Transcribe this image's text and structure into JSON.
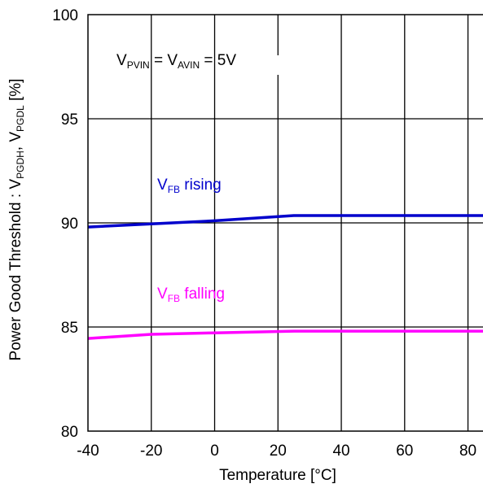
{
  "chart_data": {
    "type": "line",
    "xlabel": "Temperature [°C]",
    "ylabel": {
      "main": "Power Good Threshold : V",
      "sub1": "PGDH",
      "sep": ", V",
      "sub2": "PGDL",
      "unit": " [%]"
    },
    "xlim": [
      -40,
      85
    ],
    "ylim": [
      80,
      100
    ],
    "xticks": [
      "-40",
      "-20",
      "0",
      "20",
      "40",
      "60",
      "80"
    ],
    "xtick_values": [
      -40,
      -20,
      0,
      20,
      40,
      60,
      80
    ],
    "yticks": [
      "80",
      "85",
      "90",
      "95",
      "100"
    ],
    "ytick_values": [
      80,
      85,
      90,
      95,
      100
    ],
    "grid": true,
    "annotations": {
      "condition": {
        "parts": [
          {
            "text": "V",
            "sub": false
          },
          {
            "text": "PVIN",
            "sub": true
          },
          {
            "text": " = V",
            "sub": false
          },
          {
            "text": "AVIN",
            "sub": true
          },
          {
            "text": " = 5V",
            "sub": false
          }
        ]
      }
    },
    "series": [
      {
        "name": "VFB rising",
        "label_main": "V",
        "label_sub": "FB",
        "label_rest": " rising",
        "color": "#0000cc",
        "x": [
          -40,
          -20,
          0,
          25,
          85
        ],
        "y": [
          89.8,
          89.95,
          90.1,
          90.35,
          90.35
        ]
      },
      {
        "name": "VFB falling",
        "label_main": "V",
        "label_sub": "FB",
        "label_rest": " falling",
        "color": "#ff00ff",
        "x": [
          -40,
          -20,
          0,
          25,
          85
        ],
        "y": [
          84.45,
          84.65,
          84.72,
          84.8,
          84.8
        ]
      }
    ]
  }
}
